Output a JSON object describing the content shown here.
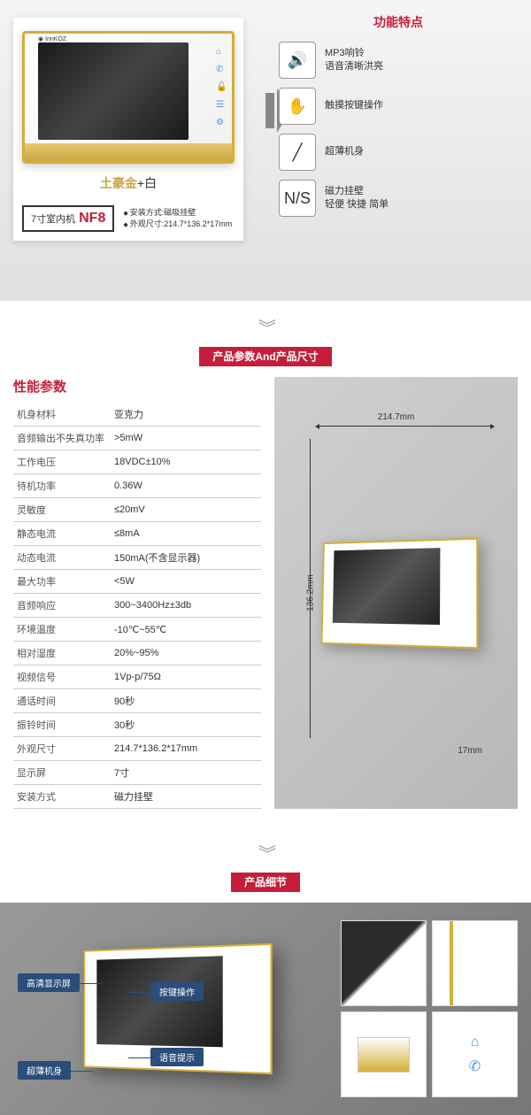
{
  "s1": {
    "colorLabel": {
      "gold": "土豪金",
      "plus": "+",
      "white": "白"
    },
    "modelPrefix": "7寸室内机",
    "modelName": "NF8",
    "specs": [
      "安装方式:磁吸挂壁",
      "外观尺寸:214.7*136.2*17mm"
    ],
    "featTitle": "功能特点",
    "features": [
      {
        "icon": "🔊",
        "line1": "MP3响铃",
        "line2": "语音清晰洪亮"
      },
      {
        "icon": "✋",
        "line1": "触摸按键操作",
        "line2": ""
      },
      {
        "icon": "╱",
        "line1": "超薄机身",
        "line2": ""
      },
      {
        "icon": "N/S",
        "line1": "磁力挂壁",
        "line2": "轻便 快捷 简单"
      }
    ]
  },
  "s2": {
    "title": "产品参数And产品尺寸",
    "specHead": "性能参数",
    "rows": [
      [
        "机身材料",
        "亚克力"
      ],
      [
        "音频输出不失真功率",
        ">5mW"
      ],
      [
        "工作电压",
        "18VDC±10%"
      ],
      [
        "待机功率",
        "0.36W"
      ],
      [
        "灵敏度",
        "≤20mV"
      ],
      [
        "静态电流",
        "≤8mA"
      ],
      [
        "动态电流",
        "150mA(不含显示器)"
      ],
      [
        "最大功率",
        "<5W"
      ],
      [
        "音频响应",
        "300~3400Hz±3db"
      ],
      [
        "环境温度",
        "-10℃~55℃"
      ],
      [
        "相对湿度",
        "20%~95%"
      ],
      [
        "视频信号",
        "1Vp-p/75Ω"
      ],
      [
        "通话时间",
        "90秒"
      ],
      [
        "振铃时间",
        "30秒"
      ],
      [
        "外观尺寸",
        "214.7*136.2*17mm"
      ],
      [
        "显示屏",
        "7寸"
      ],
      [
        "安装方式",
        "磁力挂壁"
      ]
    ],
    "dims": {
      "w": "214.7mm",
      "h": "136.2mm",
      "d": "17mm"
    }
  },
  "s3": {
    "title": "产品细节",
    "callouts": [
      "高清显示屏",
      "超薄机身",
      "按键操作",
      "语音提示"
    ]
  },
  "colors": {
    "accent": "#c41e3a",
    "gold": "#c9a845",
    "callout": "#2a4d7a"
  }
}
